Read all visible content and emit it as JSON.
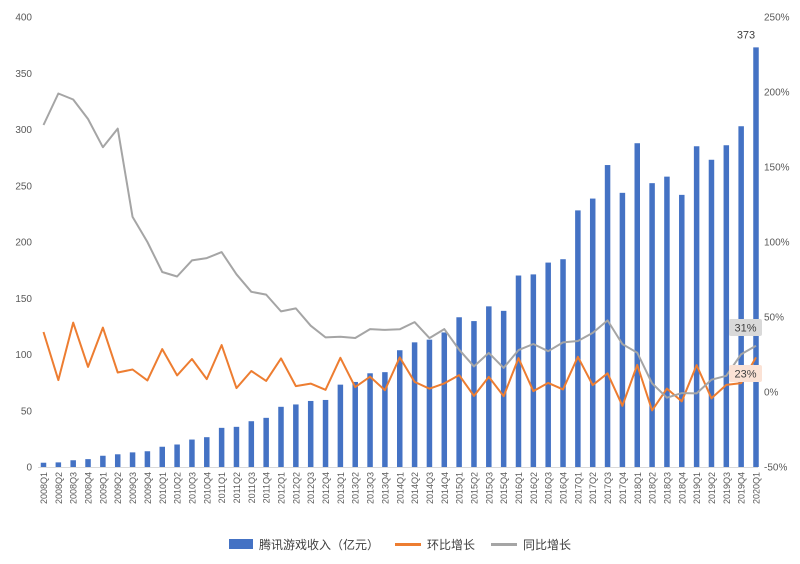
{
  "chart_data": {
    "type": "bar",
    "subtype": "bar-line-combo",
    "title": "",
    "categories": [
      "2008Q1",
      "2008Q2",
      "2008Q3",
      "2008Q4",
      "2009Q1",
      "2009Q2",
      "2009Q3",
      "2009Q4",
      "2010Q1",
      "2010Q2",
      "2010Q3",
      "2010Q4",
      "2011Q1",
      "2011Q2",
      "2011Q3",
      "2011Q4",
      "2012Q1",
      "2012Q2",
      "2012Q3",
      "2012Q4",
      "2013Q1",
      "2013Q2",
      "2013Q3",
      "2013Q4",
      "2014Q1",
      "2014Q2",
      "2014Q3",
      "2014Q4",
      "2015Q1",
      "2015Q2",
      "2015Q3",
      "2015Q4",
      "2016Q1",
      "2016Q2",
      "2016Q3",
      "2016Q4",
      "2017Q1",
      "2017Q2",
      "2017Q3",
      "2017Q4",
      "2018Q1",
      "2018Q2",
      "2018Q3",
      "2018Q4",
      "2019Q1",
      "2019Q2",
      "2019Q3",
      "2019Q4",
      "2020Q1"
    ],
    "series": [
      {
        "name": "腾讯游戏收入（亿元）",
        "type": "bar",
        "axis": "left",
        "values": [
          3.8,
          4.1,
          6,
          7,
          10,
          11.3,
          13,
          14,
          18,
          20,
          24.4,
          26.5,
          34.8,
          35.7,
          40.7,
          43.7,
          53.5,
          55.6,
          58.7,
          59.6,
          73.2,
          75.6,
          83.3,
          84.3,
          103.8,
          110.8,
          113.2,
          119.6,
          133.1,
          129.7,
          142.8,
          138.8,
          170.2,
          171.2,
          181.7,
          184.7,
          228.1,
          238.6,
          268.4,
          243.7,
          287.8,
          252.3,
          258.1,
          241.9,
          285.1,
          273.1,
          286,
          302.9,
          373
        ]
      },
      {
        "name": "环比增长",
        "type": "line",
        "axis": "right",
        "values": [
          40,
          7.9,
          46.3,
          16.7,
          42.9,
          13,
          15,
          7.7,
          28.6,
          11.1,
          22,
          8.6,
          31.3,
          2.6,
          14,
          7.4,
          22.4,
          3.9,
          5.6,
          1.5,
          22.8,
          3.3,
          10.2,
          1.2,
          23.1,
          6.7,
          2.2,
          5.7,
          11.3,
          -2.6,
          10.1,
          -2.8,
          22.6,
          0.6,
          6.1,
          1.7,
          23.5,
          4.6,
          12.5,
          -9.2,
          18.1,
          -12.3,
          2.3,
          -6.3,
          17.9,
          -4.2,
          4.7,
          5.9,
          23.1
        ]
      },
      {
        "name": "同比增长",
        "type": "line",
        "axis": "right",
        "values": [
          178,
          199,
          195,
          182,
          163.2,
          175.6,
          116.7,
          100,
          80,
          77,
          87.7,
          89.3,
          93.3,
          78.5,
          66.8,
          64.9,
          53.7,
          55.7,
          44.2,
          36.4,
          36.8,
          36,
          41.9,
          41.4,
          41.8,
          46.6,
          35.9,
          41.9,
          28.2,
          17.1,
          26.1,
          16.1,
          27.9,
          32,
          27.2,
          33.1,
          34,
          39.4,
          47.7,
          31.9,
          26.2,
          5.7,
          -3.8,
          -0.7,
          -0.9,
          8.2,
          10.8,
          25.2,
          30.8
        ]
      }
    ],
    "left_axis": {
      "min": 0,
      "max": 400,
      "tick_labels": [
        "0",
        "50",
        "100",
        "150",
        "200",
        "250",
        "300",
        "350",
        "400"
      ],
      "tick_values": [
        0,
        50,
        100,
        150,
        200,
        250,
        300,
        350,
        400
      ]
    },
    "right_axis": {
      "min": -50,
      "max": 250,
      "tick_labels": [
        "-50%",
        "0%",
        "50%",
        "100%",
        "150%",
        "200%",
        "250%"
      ],
      "tick_values": [
        -50,
        0,
        50,
        100,
        150,
        200,
        250
      ]
    },
    "grid": "off",
    "legend_position": "bottom",
    "annotations": {
      "last_bar_label": "373",
      "yoy_end_label": "31%",
      "qoq_end_label": "23%"
    },
    "colors": {
      "bar": "#4472C4",
      "qoq_line": "#ED7D31",
      "yoy_line": "#A5A5A5",
      "yoy_label_bg": "#D9D9D9",
      "qoq_label_bg": "#FBE2D5",
      "label_text": "#404040",
      "axis_text": "#595959",
      "axis_line": "#D9D9D9"
    },
    "legend": [
      {
        "label": "腾讯游戏收入（亿元）",
        "swatch": "bar"
      },
      {
        "label": "环比增长",
        "swatch": "line-orange"
      },
      {
        "label": "同比增长",
        "swatch": "line-gray"
      }
    ]
  }
}
